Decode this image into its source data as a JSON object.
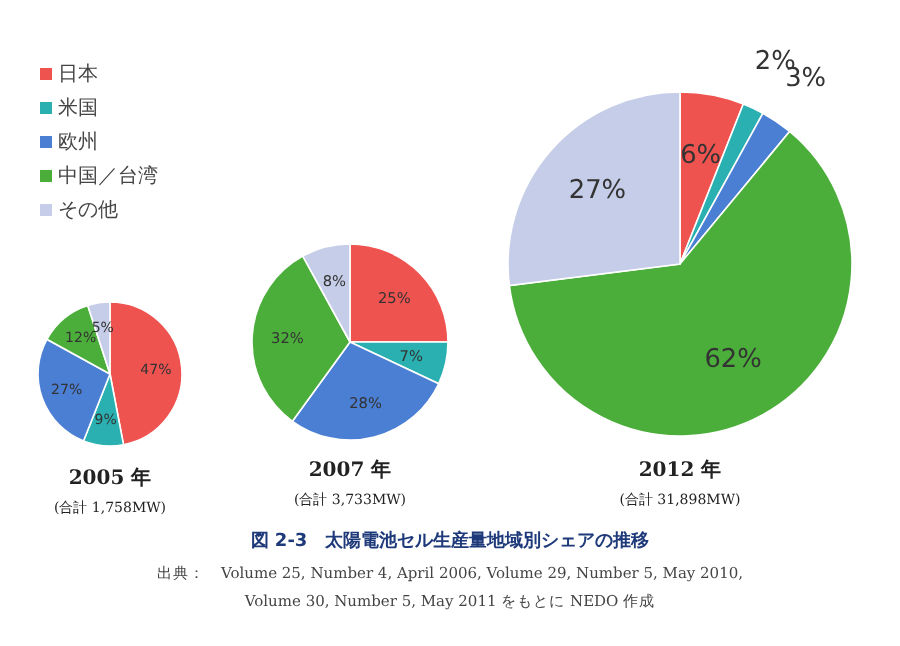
{
  "chart_data": [
    {
      "type": "pie",
      "title": "2005 年",
      "subtitle": "(合計 1,758MW)",
      "categories": [
        "日本",
        "米国",
        "欧州",
        "中国／台湾",
        "その他"
      ],
      "values": [
        47,
        9,
        27,
        12,
        5
      ],
      "value_labels": [
        "47%",
        "9%",
        "27%",
        "12%",
        "5%"
      ],
      "colors": [
        "#ef5350",
        "#2ab0b0",
        "#4a7fd4",
        "#4cae3a",
        "#c5cde8"
      ],
      "legend": "top left"
    },
    {
      "type": "pie",
      "title": "2007 年",
      "subtitle": "(合計 3,733MW)",
      "categories": [
        null,
        null,
        null,
        null,
        null
      ],
      "values": [
        25,
        7,
        28,
        32,
        8
      ],
      "value_labels": [
        "25%",
        "7%",
        "28%",
        "32%",
        "8%"
      ],
      "colors": [
        "#ef5350",
        "#2ab0b0",
        "#4a7fd4",
        "#4cae3a",
        "#c5cde8"
      ]
    },
    {
      "type": "pie",
      "title": "2012 年",
      "subtitle": "(合計 31,898MW)",
      "categories": [
        null,
        null,
        null,
        null,
        null
      ],
      "values": [
        6,
        2,
        3,
        62,
        27
      ],
      "value_labels": [
        "6%",
        "2%",
        "3%",
        "62%",
        "27%"
      ],
      "colors": [
        "#ef5350",
        "#2ab0b0",
        "#4a7fd4",
        "#4cae3a",
        "#c5cde8"
      ],
      "annotations": [
        "図 2-3　太陽電池セル生産量地域別シェアの推移",
        "出典：　Volume 25, Number 4, April 2006,  Volume 29, Number 5, May 2010,",
        "Volume 30, Number 5, May 2011 をもとに NEDO 作成"
      ]
    }
  ]
}
